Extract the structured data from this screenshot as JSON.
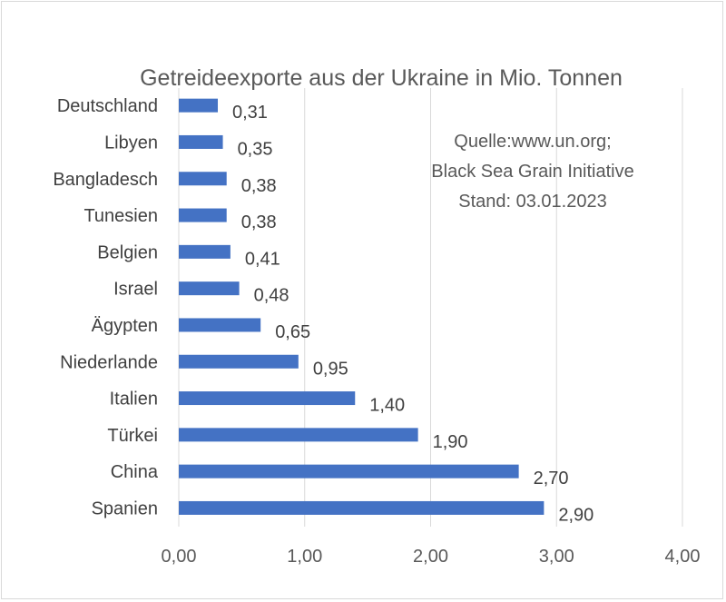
{
  "chart_data": {
    "type": "bar",
    "orientation": "horizontal",
    "title": "Getreideexporte aus der Ukraine in Mio. Tonnen",
    "categories": [
      "Deutschland",
      "Libyen",
      "Bangladesch",
      "Tunesien",
      "Belgien",
      "Israel",
      "Ägypten",
      "Niederlande",
      "Italien",
      "Türkei",
      "China",
      "Spanien"
    ],
    "values": [
      0.31,
      0.35,
      0.38,
      0.38,
      0.41,
      0.48,
      0.65,
      0.95,
      1.4,
      1.9,
      2.7,
      2.9
    ],
    "value_labels": [
      "0,31",
      "0,35",
      "0,38",
      "0,38",
      "0,41",
      "0,48",
      "0,65",
      "0,95",
      "1,40",
      "1,90",
      "2,70",
      "2,90"
    ],
    "xlim": [
      0,
      4
    ],
    "x_ticks": [
      "0,00",
      "1,00",
      "2,00",
      "3,00",
      "4,00"
    ],
    "grid": "vertical",
    "legend": "none",
    "bar_color": "#4472c4",
    "annotation": [
      "Quelle:www.un.org;",
      "Black Sea Grain Initiative",
      "Stand: 03.01.2023"
    ]
  }
}
